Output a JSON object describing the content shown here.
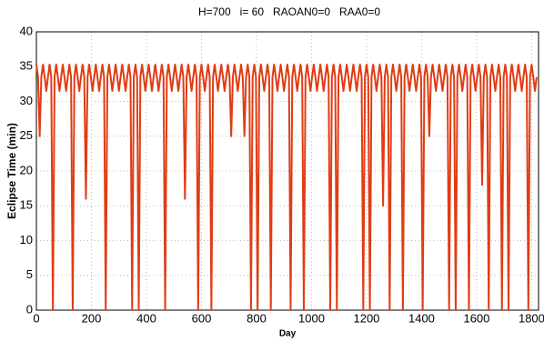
{
  "chart_data": {
    "type": "line",
    "title": "H=700   i= 60   RAOAN0=0   RAA0=0",
    "x_label": "Day",
    "y_label": "Eclipse Time (min)",
    "color": "#e03c14",
    "grid": true,
    "xlim": [
      0,
      1825
    ],
    "ylim": [
      0,
      40
    ],
    "xticks": [
      0,
      200,
      400,
      600,
      800,
      1000,
      1200,
      1400,
      1600,
      1800
    ],
    "yticks": [
      0,
      5,
      10,
      15,
      20,
      25,
      30,
      35,
      40
    ],
    "x": [
      0,
      6,
      12,
      18,
      24,
      30,
      36,
      42,
      48,
      54,
      60,
      66,
      72,
      78,
      84,
      90,
      96,
      102,
      108,
      114,
      120,
      126,
      132,
      138,
      144,
      150,
      156,
      162,
      168,
      174,
      180,
      186,
      192,
      198,
      204,
      210,
      216,
      222,
      228,
      234,
      240,
      246,
      252,
      258,
      264,
      270,
      276,
      282,
      288,
      294,
      300,
      306,
      312,
      318,
      324,
      330,
      336,
      342,
      348,
      354,
      360,
      366,
      372,
      378,
      384,
      390,
      396,
      402,
      408,
      414,
      420,
      426,
      432,
      438,
      444,
      450,
      456,
      462,
      468,
      474,
      480,
      486,
      492,
      498,
      504,
      510,
      516,
      522,
      528,
      534,
      540,
      546,
      552,
      558,
      564,
      570,
      576,
      582,
      588,
      594,
      600,
      606,
      612,
      618,
      624,
      630,
      636,
      642,
      648,
      654,
      660,
      666,
      672,
      678,
      684,
      690,
      696,
      702,
      708,
      714,
      720,
      726,
      732,
      738,
      744,
      750,
      756,
      762,
      768,
      774,
      780,
      786,
      792,
      798,
      804,
      810,
      816,
      822,
      828,
      834,
      840,
      846,
      852,
      858,
      864,
      870,
      876,
      882,
      888,
      894,
      900,
      906,
      912,
      918,
      924,
      930,
      936,
      942,
      948,
      954,
      960,
      966,
      972,
      978,
      984,
      990,
      996,
      1002,
      1008,
      1014,
      1020,
      1026,
      1032,
      1038,
      1044,
      1050,
      1056,
      1062,
      1068,
      1074,
      1080,
      1086,
      1092,
      1098,
      1104,
      1110,
      1116,
      1122,
      1128,
      1134,
      1140,
      1146,
      1152,
      1158,
      1164,
      1170,
      1176,
      1182,
      1188,
      1194,
      1200,
      1206,
      1212,
      1218,
      1224,
      1230,
      1236,
      1242,
      1248,
      1254,
      1260,
      1266,
      1272,
      1278,
      1284,
      1290,
      1296,
      1302,
      1308,
      1314,
      1320,
      1326,
      1332,
      1338,
      1344,
      1350,
      1356,
      1362,
      1368,
      1374,
      1380,
      1386,
      1392,
      1398,
      1404,
      1410,
      1416,
      1422,
      1428,
      1434,
      1440,
      1446,
      1452,
      1458,
      1464,
      1470,
      1476,
      1482,
      1488,
      1494,
      1500,
      1506,
      1512,
      1518,
      1524,
      1530,
      1536,
      1542,
      1548,
      1554,
      1560,
      1566,
      1572,
      1578,
      1584,
      1590,
      1596,
      1602,
      1608,
      1614,
      1620,
      1626,
      1632,
      1638,
      1644,
      1650,
      1656,
      1662,
      1668,
      1674,
      1680,
      1686,
      1692,
      1698,
      1704,
      1710,
      1716,
      1722,
      1728,
      1734,
      1740,
      1746,
      1752,
      1758,
      1764,
      1770,
      1776,
      1782,
      1788,
      1794,
      1800,
      1806,
      1812,
      1818
    ],
    "values": [
      35.3,
      33.5,
      25,
      33.5,
      35.3,
      33.5,
      31.5,
      33.5,
      35.3,
      33.5,
      0,
      33.5,
      35.3,
      33.5,
      31.5,
      33.5,
      35.3,
      33.5,
      31.5,
      33.5,
      35.3,
      33.5,
      0,
      33.5,
      35.3,
      33.5,
      31.5,
      33.5,
      35.3,
      33.5,
      16,
      33.5,
      35.3,
      33.5,
      31.5,
      33.5,
      35.3,
      33.5,
      31.5,
      33.5,
      35.3,
      33.5,
      0,
      33.5,
      35.3,
      33.5,
      31.5,
      33.5,
      35.3,
      33.5,
      31.5,
      33.5,
      35.3,
      33.5,
      31.5,
      33.5,
      35.3,
      33.5,
      0,
      33.5,
      35.3,
      33.5,
      0,
      33.5,
      35.3,
      33.5,
      31.5,
      33.5,
      35.3,
      33.5,
      31.5,
      33.5,
      35.3,
      33.5,
      31.5,
      33.5,
      35.3,
      33.5,
      0,
      33.5,
      35.3,
      33.5,
      31.5,
      33.5,
      35.3,
      33.5,
      31.5,
      33.5,
      35.3,
      33.5,
      16,
      33.5,
      35.3,
      33.5,
      31.5,
      33.5,
      35.3,
      33.5,
      0,
      33.5,
      35.3,
      33.5,
      31.5,
      33.5,
      35.3,
      33.5,
      0,
      33.5,
      35.3,
      33.5,
      31.5,
      33.5,
      35.3,
      33.5,
      31.5,
      33.5,
      35.3,
      33.5,
      25,
      33.5,
      35.3,
      33.5,
      31.5,
      33.5,
      35.3,
      33.5,
      25,
      33.5,
      35.3,
      33.5,
      0,
      33.5,
      35.3,
      33.5,
      0,
      33.5,
      35.3,
      33.5,
      31.5,
      33.5,
      35.3,
      33.5,
      0,
      33.5,
      35.3,
      33.5,
      31.5,
      33.5,
      35.3,
      33.5,
      31.5,
      33.5,
      35.3,
      33.5,
      0,
      33.5,
      35.3,
      33.5,
      31.5,
      33.5,
      35.3,
      33.5,
      0,
      33.5,
      35.3,
      33.5,
      31.5,
      33.5,
      35.3,
      33.5,
      31.5,
      33.5,
      35.3,
      33.5,
      31.5,
      33.5,
      35.3,
      33.5,
      0,
      33.5,
      35.3,
      33.5,
      0,
      33.5,
      35.3,
      33.5,
      31.5,
      33.5,
      35.3,
      33.5,
      31.5,
      33.5,
      35.3,
      33.5,
      31.5,
      33.5,
      35.3,
      33.5,
      0,
      33.5,
      35.3,
      33.5,
      0,
      33.5,
      35.3,
      33.5,
      31.5,
      33.5,
      35.3,
      33.5,
      15,
      33.5,
      35.3,
      33.5,
      0,
      33.5,
      35.3,
      33.5,
      31.5,
      33.5,
      35.3,
      33.5,
      0,
      33.5,
      35.3,
      33.5,
      31.5,
      33.5,
      35.3,
      33.5,
      31.5,
      33.5,
      35.3,
      33.5,
      0,
      33.5,
      35.3,
      33.5,
      25,
      33.5,
      35.3,
      33.5,
      31.5,
      33.5,
      35.3,
      33.5,
      31.5,
      33.5,
      35.3,
      33.5,
      0,
      33.5,
      35.3,
      33.5,
      0,
      33.5,
      35.3,
      33.5,
      31.5,
      33.5,
      35.3,
      33.5,
      0,
      33.5,
      35.3,
      33.5,
      31.5,
      33.5,
      35.3,
      33.5,
      18,
      33.5,
      35.3,
      33.5,
      0,
      33.5,
      35.3,
      33.5,
      31.5,
      33.5,
      35.3,
      33.5,
      0,
      33.5,
      35.3,
      33.5,
      0,
      33.5,
      35.3,
      33.5,
      31.5,
      33.5,
      35.3,
      33.5,
      31.5,
      33.5,
      35.3,
      33.5,
      0,
      33.5,
      35.3,
      33.5,
      31.5,
      33.5
    ]
  }
}
